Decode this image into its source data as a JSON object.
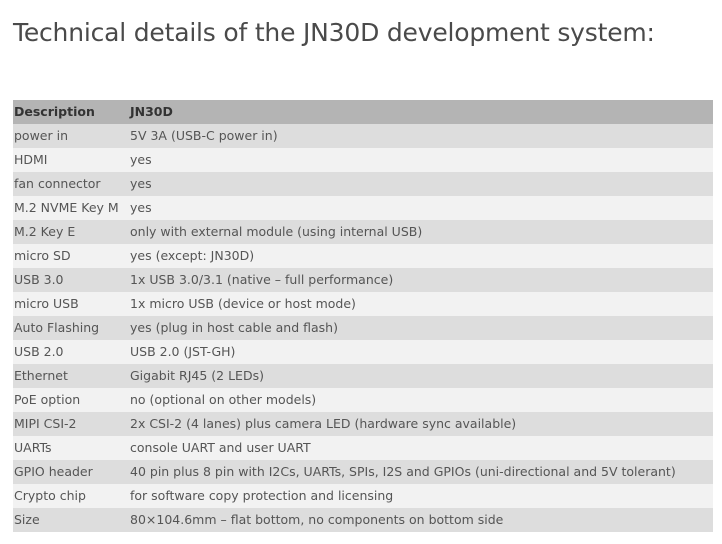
{
  "page": {
    "title": "Technical details of the JN30D development system:"
  },
  "table": {
    "headers": [
      "Description",
      "JN30D"
    ],
    "rows": [
      [
        "power in",
        "5V 3A (USB-C power in)"
      ],
      [
        "HDMI",
        "yes"
      ],
      [
        "fan connector",
        "yes"
      ],
      [
        "M.2 NVME Key M",
        "yes"
      ],
      [
        "M.2 Key E",
        "only with external module (using internal USB)"
      ],
      [
        "micro SD",
        "yes (except: JN30D)"
      ],
      [
        "USB 3.0",
        "1x USB 3.0/3.1 (native – full performance)"
      ],
      [
        "micro USB",
        "1x micro USB (device or host mode)"
      ],
      [
        "Auto Flashing",
        "yes (plug in host cable and flash)"
      ],
      [
        "USB 2.0",
        "USB 2.0 (JST-GH)"
      ],
      [
        "Ethernet",
        "Gigabit RJ45 (2 LEDs)"
      ],
      [
        "PoE option",
        "no (optional on other models)"
      ],
      [
        "MIPI CSI-2",
        "2x CSI-2 (4 lanes) plus camera LED (hardware sync available)"
      ],
      [
        "UARTs",
        "console UART and user UART"
      ],
      [
        "GPIO header",
        "40 pin plus 8 pin with I2Cs, UARTs, SPIs, I2S and GPIOs (uni-directional and 5V tolerant)"
      ],
      [
        "Crypto chip",
        "for software copy protection and licensing"
      ],
      [
        "Size",
        "80×104.6mm – flat bottom, no components on bottom side"
      ]
    ]
  },
  "colors": {
    "header_bg": "#b4b4b4",
    "row_odd_bg": "#dddddd",
    "row_even_bg": "#f2f2f2",
    "text": "#555555"
  }
}
